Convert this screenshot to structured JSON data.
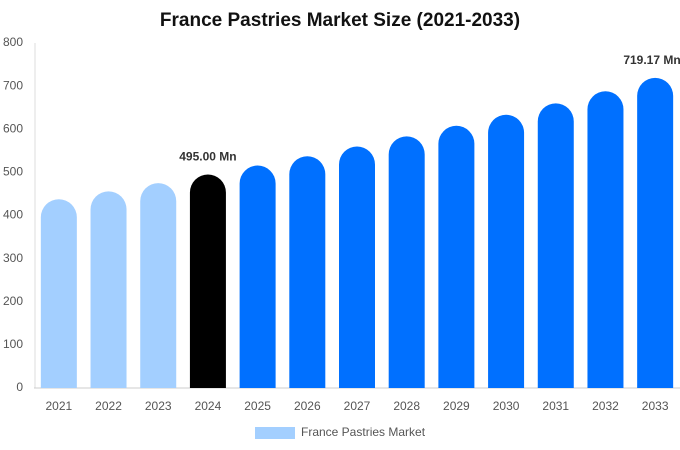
{
  "chart_data": {
    "type": "bar",
    "title": "France Pastries Market Size (2021-2033)",
    "categories": [
      "2021",
      "2022",
      "2023",
      "2024",
      "2025",
      "2026",
      "2027",
      "2028",
      "2029",
      "2030",
      "2031",
      "2032",
      "2033"
    ],
    "series": [
      {
        "name": "France Pastries Market",
        "color": "#a3cfff",
        "values": [
          437.6,
          456,
          475,
          495,
          515.8,
          537.5,
          560,
          583.5,
          608,
          633.6,
          660,
          688,
          719.17
        ],
        "colors": [
          "#a3cfff",
          "#a3cfff",
          "#a3cfff",
          "#000000",
          "#0070ff",
          "#0070ff",
          "#0070ff",
          "#0070ff",
          "#0070ff",
          "#0070ff",
          "#0070ff",
          "#0070ff",
          "#0070ff"
        ],
        "value_labels": [
          null,
          null,
          null,
          "495.00 Mn",
          null,
          null,
          null,
          null,
          null,
          null,
          null,
          null,
          "719.17 Mn"
        ]
      }
    ],
    "ylim": [
      0,
      800
    ],
    "yticks": [
      0,
      100,
      200,
      300,
      400,
      500,
      600,
      700,
      800
    ],
    "grid": false
  }
}
